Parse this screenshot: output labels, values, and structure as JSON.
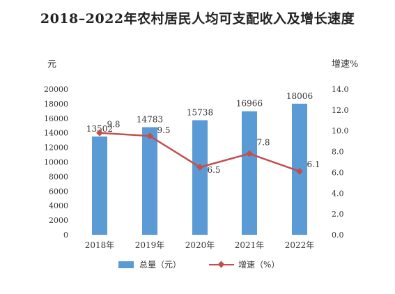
{
  "chart_data": {
    "type": "bar+line",
    "title": "2018–2022年农村居民人均可支配收入及增长速度",
    "categories": [
      "2018年",
      "2019年",
      "2020年",
      "2021年",
      "2022年"
    ],
    "series": [
      {
        "name": "总量（元）",
        "type": "bar",
        "axis": "left",
        "values": [
          13502,
          14783,
          15738,
          16966,
          18006
        ],
        "color": "#5b9bd5"
      },
      {
        "name": "增速（%）",
        "type": "line",
        "axis": "right",
        "values": [
          9.8,
          9.5,
          6.5,
          7.8,
          6.1
        ],
        "color": "#c0504d"
      }
    ],
    "left_axis": {
      "label": "元",
      "ylim": [
        0,
        20000
      ],
      "ticks": [
        "0",
        "2000",
        "4000",
        "6000",
        "8000",
        "10000",
        "12000",
        "14000",
        "16000",
        "18000",
        "20000"
      ]
    },
    "right_axis": {
      "label": "增速%",
      "ylim": [
        0,
        14
      ],
      "ticks": [
        "0.0",
        "2.0",
        "4.0",
        "6.0",
        "8.0",
        "10.0",
        "12.0",
        "14.0"
      ]
    },
    "grid": false,
    "legend_position": "bottom"
  }
}
